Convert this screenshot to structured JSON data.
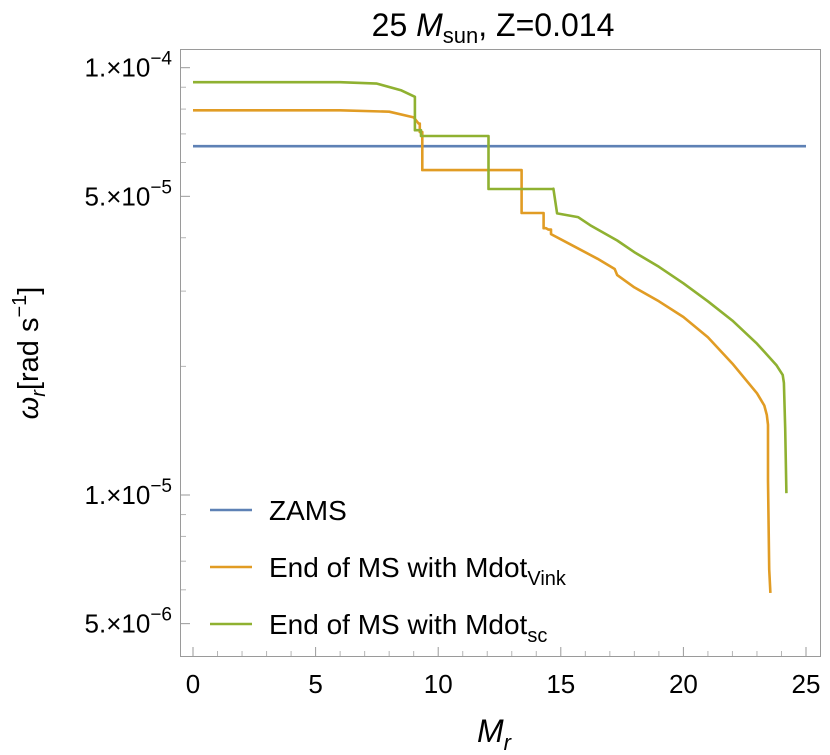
{
  "chart_data": {
    "type": "line",
    "title": "25 M_sun, Z=0.014",
    "title_parts": {
      "prefix": "25 ",
      "symbol": "M",
      "sub": "sun",
      "suffix": ", Z=0.014"
    },
    "xlabel": "M_r",
    "xlabel_parts": {
      "symbol": "M",
      "sub": "r"
    },
    "ylabel": "ω_r[rad s^-1]",
    "ylabel_parts": {
      "symbol": "ω",
      "sub": "r",
      "unit": "[rad s",
      "sup": "−1",
      "close": "]"
    },
    "xlim": [
      0,
      25
    ],
    "ylim": [
      4.2e-06,
      0.00011
    ],
    "yscale": "log",
    "grid": false,
    "legend_position": "bottom-left",
    "x_ticks": [
      {
        "value": 0,
        "label": "0"
      },
      {
        "value": 5,
        "label": "5"
      },
      {
        "value": 10,
        "label": "10"
      },
      {
        "value": 15,
        "label": "15"
      },
      {
        "value": 20,
        "label": "20"
      },
      {
        "value": 25,
        "label": "25"
      }
    ],
    "y_ticks": [
      {
        "value": 5e-06,
        "mant": "5.×10",
        "exp": "−6"
      },
      {
        "value": 1e-05,
        "mant": "1.×10",
        "exp": "−5"
      },
      {
        "value": 5e-05,
        "mant": "5.×10",
        "exp": "−5"
      },
      {
        "value": 0.0001,
        "mant": "1.×10",
        "exp": "−4"
      }
    ],
    "series": [
      {
        "name": "ZAMS",
        "legend": {
          "main": "ZAMS",
          "sub": ""
        },
        "color": "#5e81b5",
        "x": [
          0,
          25
        ],
        "y": [
          6.55e-05,
          6.55e-05
        ]
      },
      {
        "name": "End of MS with Mdot_Vink",
        "legend": {
          "main": "End of MS with Mdot",
          "sub": "Vink"
        },
        "color": "#e19c24",
        "x": [
          0,
          3,
          6,
          8,
          9,
          9.2,
          9.25,
          9.25,
          9.3,
          9.35,
          9.35,
          13.4,
          13.4,
          14.3,
          14.3,
          14.4,
          14.5,
          14.6,
          14.6,
          15.5,
          16.5,
          17.2,
          17.3,
          18,
          19,
          20,
          21,
          22,
          23,
          23.3,
          23.4,
          23.45,
          23.45,
          23.5,
          23.55
        ],
        "y": [
          7.95e-05,
          7.95e-05,
          7.95e-05,
          7.89e-05,
          7.65e-05,
          7.4e-05,
          7.4e-05,
          7.07e-05,
          7.07e-05,
          7.07e-05,
          5.76e-05,
          5.76e-05,
          4.57e-05,
          4.57e-05,
          4.21e-05,
          4.21e-05,
          4.18e-05,
          4.18e-05,
          4.08e-05,
          3.83e-05,
          3.57e-05,
          3.38e-05,
          3.27e-05,
          3.06e-05,
          2.84e-05,
          2.61e-05,
          2.34e-05,
          2.03e-05,
          1.73e-05,
          1.62e-05,
          1.54e-05,
          1.46e-05,
          1.08e-05,
          6.7e-06,
          5.9e-06
        ]
      },
      {
        "name": "End of MS with Mdot_sc",
        "legend": {
          "main": "End of MS with Mdot",
          "sub": "sc"
        },
        "color": "#8fb131",
        "x": [
          0,
          3,
          6,
          7.5,
          8.5,
          9.05,
          9.05,
          9.15,
          9.3,
          9.3,
          12.05,
          12.05,
          14.7,
          14.7,
          14.85,
          14.85,
          15.7,
          16.2,
          17.3,
          18,
          19,
          20,
          21,
          22,
          23,
          23.8,
          24.05,
          24.1,
          24.15,
          24.2
        ],
        "y": [
          9.25e-05,
          9.25e-05,
          9.25e-05,
          9.18e-05,
          8.85e-05,
          8.55e-05,
          7.14e-05,
          7.14e-05,
          7.14e-05,
          6.92e-05,
          6.92e-05,
          5.2e-05,
          5.2e-05,
          5.21e-05,
          4.56e-05,
          4.56e-05,
          4.47e-05,
          4.28e-05,
          3.94e-05,
          3.7e-05,
          3.42e-05,
          3.13e-05,
          2.84e-05,
          2.56e-05,
          2.26e-05,
          2.01e-05,
          1.91e-05,
          1.83e-05,
          1.43e-05,
          1.01e-05
        ]
      }
    ]
  }
}
